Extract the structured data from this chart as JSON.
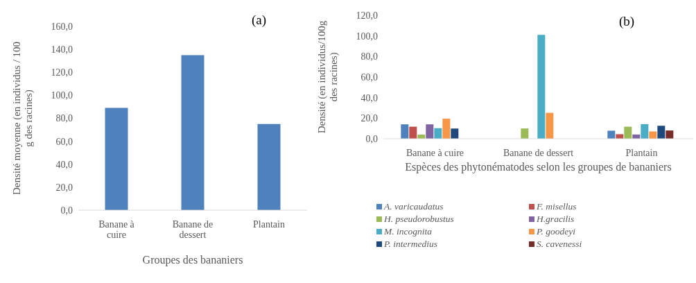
{
  "chart_data": [
    {
      "type": "bar",
      "title": "(a)",
      "xlabel": "Groupes des bananiers",
      "ylabel": "Densité moyenne (en individus / 100 g des racines)",
      "categories": [
        "Banane à cuire",
        "Banane de dessert",
        "Plantain"
      ],
      "values": [
        89,
        135,
        75
      ],
      "color": "#4f81bd",
      "ylim": [
        0,
        160
      ],
      "yticks": [
        {
          "value": 0,
          "label": "0,0"
        },
        {
          "value": 20,
          "label": "20,0"
        },
        {
          "value": 40,
          "label": "40,0"
        },
        {
          "value": 60,
          "label": "60,0"
        },
        {
          "value": 80,
          "label": "80,0"
        },
        {
          "value": 100,
          "label": "100,0"
        },
        {
          "value": 120,
          "label": "120,0"
        },
        {
          "value": 140,
          "label": "140,0"
        },
        {
          "value": 160,
          "label": "160,0"
        }
      ],
      "grid": false,
      "legend": false
    },
    {
      "type": "bar",
      "title": "(b)",
      "xlabel": "Espèces des phytonématodes selon les groupes de bananiers",
      "ylabel": "Densité  (en individus/100g des racines)",
      "categories": [
        "Banane à cuire",
        "Banane de  dessert",
        "Plantain"
      ],
      "ylim": [
        0,
        120
      ],
      "yticks": [
        {
          "value": 0,
          "label": "0,0"
        },
        {
          "value": 20,
          "label": "20,0"
        },
        {
          "value": 40,
          "label": "40,0"
        },
        {
          "value": 60,
          "label": "60,0"
        },
        {
          "value": 80,
          "label": "80,0"
        },
        {
          "value": 100,
          "label": "100,0"
        },
        {
          "value": 120,
          "label": "120,0"
        }
      ],
      "grid": false,
      "legend": "bottom",
      "series": [
        {
          "name": "A. varicaudatus",
          "color": "#4f81bd",
          "values": [
            14,
            0,
            7.8
          ]
        },
        {
          "name": "F. misellus",
          "color": "#c0504d",
          "values": [
            11.7,
            0,
            4.4
          ]
        },
        {
          "name": "H. pseudorobustus",
          "color": "#9bbb59",
          "values": [
            4,
            10,
            11.7
          ]
        },
        {
          "name": "H.gracilis",
          "color": "#8064a2",
          "values": [
            14,
            0,
            4.1
          ]
        },
        {
          "name": "M. incognita",
          "color": "#4bacc6",
          "values": [
            10.3,
            101,
            14.2
          ]
        },
        {
          "name": "P. goodeyi",
          "color": "#f79646",
          "values": [
            19.5,
            25.2,
            7.1
          ]
        },
        {
          "name": "P. intermedius",
          "color": "#1f497d",
          "values": [
            9.9,
            0,
            12.6
          ]
        },
        {
          "name": "S. cavenessi",
          "color": "#772c2a",
          "values": [
            0,
            0,
            8
          ]
        }
      ]
    }
  ]
}
